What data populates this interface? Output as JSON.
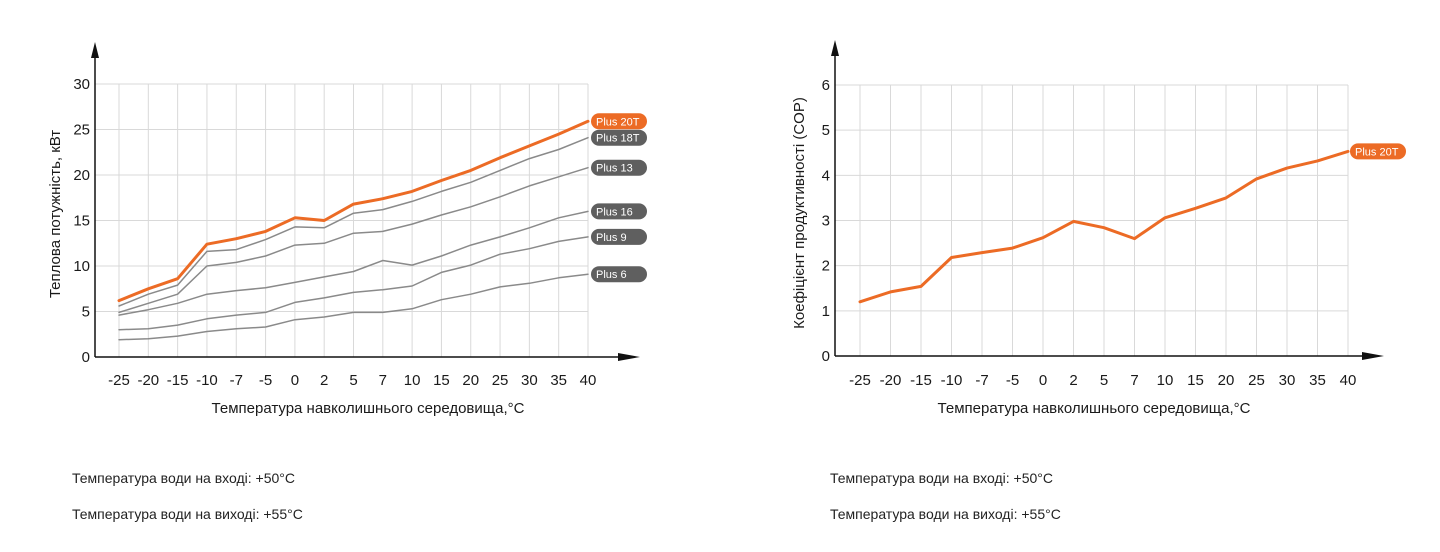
{
  "colors": {
    "accent": "#ec6b25",
    "series_gray": "#8a8a8a",
    "badge_gray": "#5f5f5f",
    "grid": "#d9d9d9",
    "axis": "#111111"
  },
  "chart_data": [
    {
      "type": "line",
      "xlabel": "Температура навколишнього середовища,°С",
      "ylabel": "Теплова потужність, кВт",
      "categories": [
        "-25",
        "-20",
        "-15",
        "-10",
        "-7",
        "-5",
        "0",
        "2",
        "5",
        "7",
        "10",
        "15",
        "20",
        "25",
        "30",
        "35",
        "40"
      ],
      "ylim": [
        0,
        30
      ],
      "yticks": [
        0,
        5,
        10,
        15,
        20,
        25,
        30
      ],
      "grid": true,
      "series": [
        {
          "name": "Plus 20T",
          "highlight": true,
          "values": [
            6.2,
            7.5,
            8.6,
            12.4,
            13,
            13.8,
            15.3,
            15,
            16.8,
            17.4,
            18.2,
            19.4,
            20.5,
            21.9,
            23.2,
            24.5,
            25.9
          ]
        },
        {
          "name": "Plus 18T",
          "highlight": false,
          "values": [
            5.6,
            6.9,
            7.9,
            11.6,
            11.8,
            12.9,
            14.3,
            14.2,
            15.8,
            16.2,
            17.1,
            18.2,
            19.2,
            20.5,
            21.8,
            22.8,
            24.1
          ]
        },
        {
          "name": "Plus 13",
          "highlight": false,
          "values": [
            4.9,
            5.9,
            6.9,
            10,
            10.4,
            11.1,
            12.3,
            12.5,
            13.6,
            13.8,
            14.6,
            15.6,
            16.5,
            17.6,
            18.8,
            19.8,
            20.8
          ]
        },
        {
          "name": "Plus 16",
          "highlight": false,
          "values": [
            4.6,
            5.2,
            5.9,
            6.9,
            7.3,
            7.6,
            8.2,
            8.8,
            9.4,
            10.6,
            10.1,
            11.1,
            12.3,
            13.2,
            14.2,
            15.3,
            16
          ]
        },
        {
          "name": "Plus 9",
          "highlight": false,
          "values": [
            3,
            3.1,
            3.5,
            4.2,
            4.6,
            4.9,
            6,
            6.5,
            7.1,
            7.4,
            7.8,
            9.3,
            10.1,
            11.3,
            11.9,
            12.7,
            13.2
          ]
        },
        {
          "name": "Plus 6",
          "highlight": false,
          "values": [
            1.9,
            2,
            2.3,
            2.8,
            3.1,
            3.3,
            4.1,
            4.4,
            4.9,
            4.9,
            5.3,
            6.3,
            6.9,
            7.7,
            8.1,
            8.7,
            9.1
          ]
        }
      ]
    },
    {
      "type": "line",
      "xlabel": "Температура навколишнього середовища,°С",
      "ylabel": "Коефіцієнт продуктивності (COP)",
      "categories": [
        "-25",
        "-20",
        "-15",
        "-10",
        "-7",
        "-5",
        "0",
        "2",
        "5",
        "7",
        "10",
        "15",
        "20",
        "25",
        "30",
        "35",
        "40"
      ],
      "ylim": [
        0,
        6
      ],
      "yticks": [
        0,
        1,
        2,
        3,
        4,
        5,
        6
      ],
      "grid": true,
      "series": [
        {
          "name": "Plus 20T",
          "highlight": true,
          "values": [
            1.2,
            1.42,
            1.54,
            2.18,
            2.29,
            2.39,
            2.62,
            2.98,
            2.84,
            2.6,
            3.06,
            3.27,
            3.5,
            3.92,
            4.16,
            4.32,
            4.53
          ]
        }
      ]
    }
  ],
  "notes": [
    {
      "inlet": "Температура води на вході: +50°C",
      "outlet": "Температура води на виході: +55°C"
    },
    {
      "inlet": "Температура води на вході: +50°C",
      "outlet": "Температура води на виході: +55°C"
    }
  ]
}
